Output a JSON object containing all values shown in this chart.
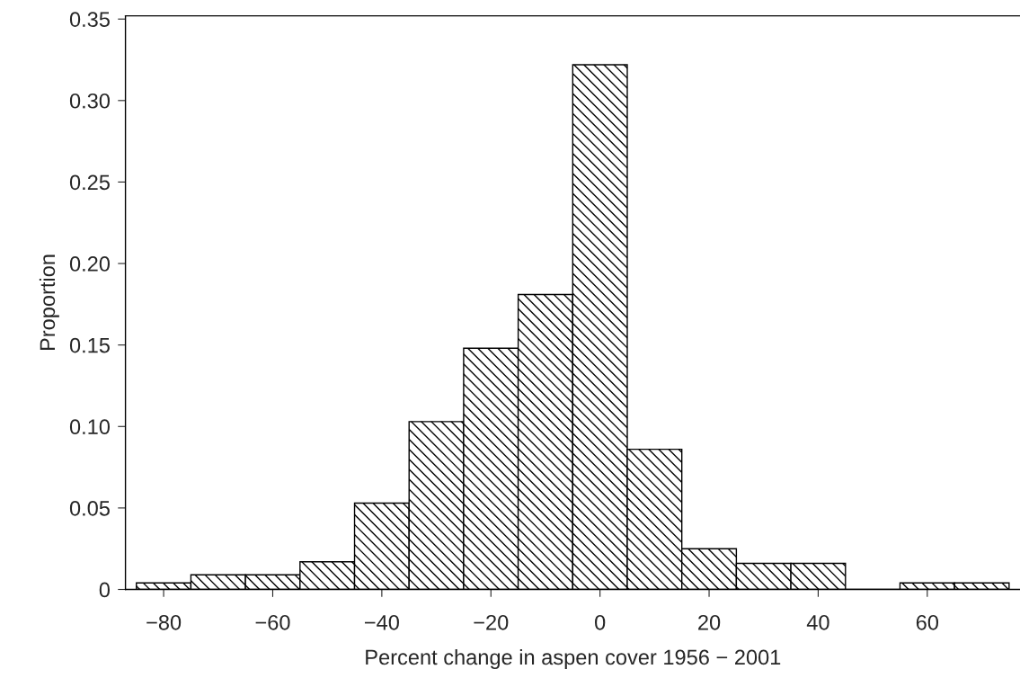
{
  "chart_data": {
    "type": "histogram",
    "xlabel": "Percent change in aspen cover 1956 − 2001",
    "ylabel": "Proportion",
    "bins": [
      -85,
      -75,
      -65,
      -55,
      -45,
      -35,
      -25,
      -15,
      -5,
      5,
      15,
      25,
      35,
      45,
      55,
      65,
      75
    ],
    "values": [
      0.004,
      0.009,
      0.009,
      0.017,
      0.053,
      0.103,
      0.148,
      0.181,
      0.322,
      0.086,
      0.025,
      0.016,
      0.016,
      0,
      0.004,
      0.004
    ],
    "color": "#000000",
    "xlim": [
      -87,
      77
    ],
    "xticks": [
      {
        "value": -80,
        "label": "−80"
      },
      {
        "value": -60,
        "label": "−60"
      },
      {
        "value": -40,
        "label": "−40"
      },
      {
        "value": -20,
        "label": "−20"
      },
      0,
      20,
      40,
      60
    ],
    "ylim": [
      0,
      0.352
    ],
    "yticks": [
      0,
      0.05,
      {
        "value": 0.1,
        "label": "0.10"
      },
      0.15,
      {
        "value": 0.2,
        "label": "0.20"
      },
      0.25,
      {
        "value": 0.3,
        "label": "0.30"
      },
      0.35
    ],
    "grid": false
  }
}
